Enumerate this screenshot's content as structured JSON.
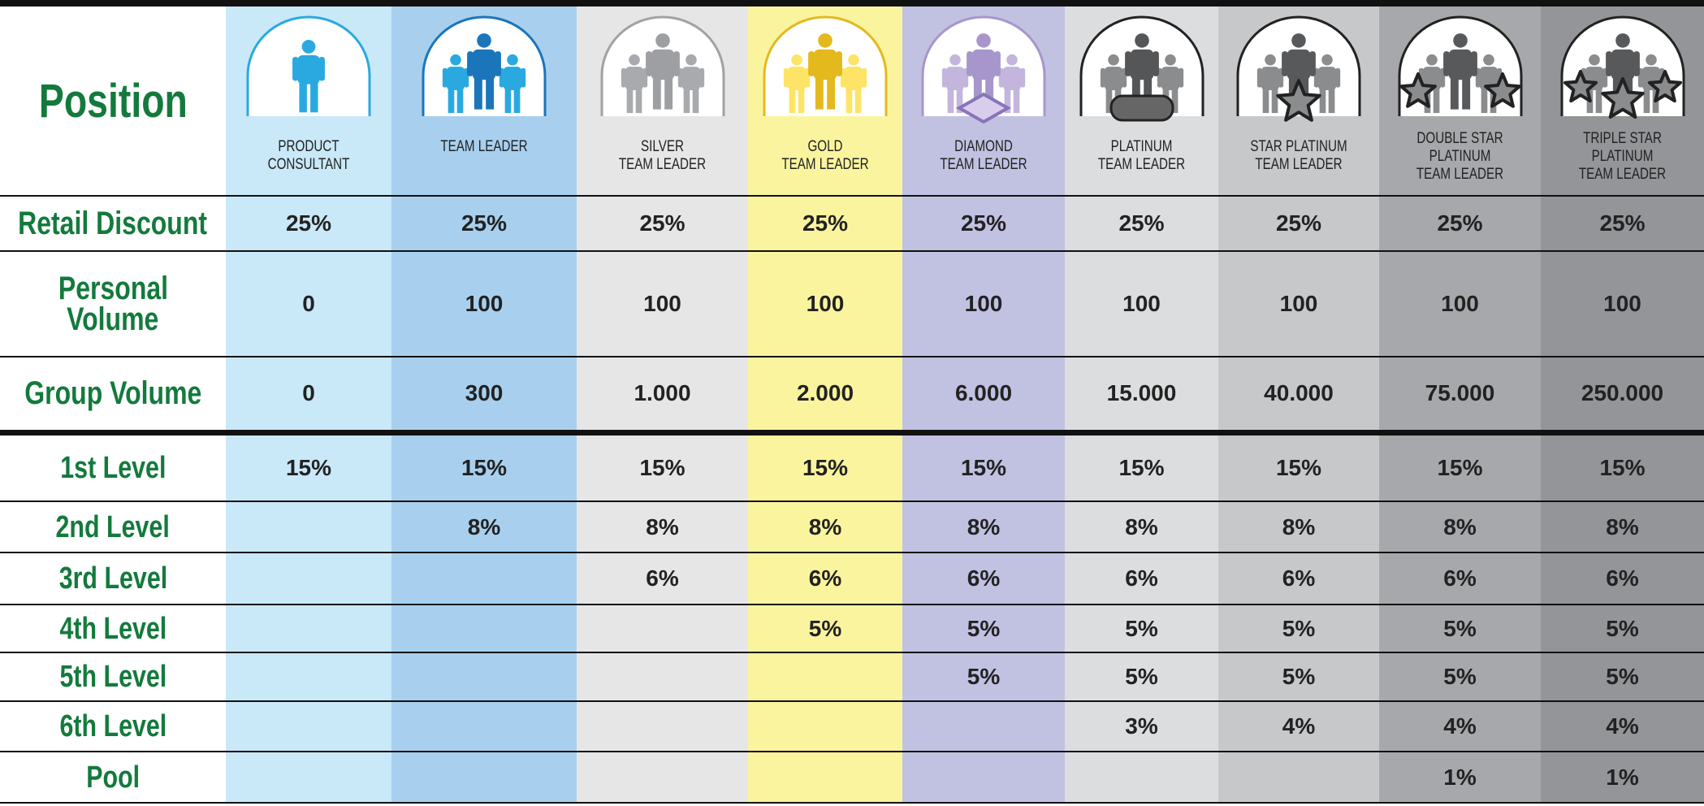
{
  "header": {
    "title": "Position"
  },
  "columns": [
    [
      "PRODUCT",
      "CONSULTANT"
    ],
    [
      "TEAM LEADER"
    ],
    [
      "SILVER",
      "TEAM LEADER"
    ],
    [
      "GOLD",
      "TEAM LEADER"
    ],
    [
      "DIAMOND",
      "TEAM LEADER"
    ],
    [
      "PLATINUM",
      "TEAM LEADER"
    ],
    [
      "STAR PLATINUM",
      "TEAM LEADER"
    ],
    [
      "DOUBLE STAR",
      "PLATINUM",
      "TEAM LEADER"
    ],
    [
      "TRIPLE STAR",
      "PLATINUM",
      "TEAM LEADER"
    ]
  ],
  "rows": [
    {
      "label": [
        "Retail Discount"
      ],
      "values": [
        "25%",
        "25%",
        "25%",
        "25%",
        "25%",
        "25%",
        "25%",
        "25%",
        "25%"
      ]
    },
    {
      "label": [
        "Personal",
        "Volume"
      ],
      "values": [
        "0",
        "100",
        "100",
        "100",
        "100",
        "100",
        "100",
        "100",
        "100"
      ]
    },
    {
      "label": [
        "Group Volume"
      ],
      "values": [
        "0",
        "300",
        "1.000",
        "2.000",
        "6.000",
        "15.000",
        "40.000",
        "75.000",
        "250.000"
      ]
    },
    {
      "label": [
        "1st Level"
      ],
      "values": [
        "15%",
        "15%",
        "15%",
        "15%",
        "15%",
        "15%",
        "15%",
        "15%",
        "15%"
      ]
    },
    {
      "label": [
        "2nd Level"
      ],
      "values": [
        null,
        "8%",
        "8%",
        "8%",
        "8%",
        "8%",
        "8%",
        "8%",
        "8%"
      ]
    },
    {
      "label": [
        "3rd Level"
      ],
      "values": [
        null,
        null,
        "6%",
        "6%",
        "6%",
        "6%",
        "6%",
        "6%",
        "6%"
      ]
    },
    {
      "label": [
        "4th Level"
      ],
      "values": [
        null,
        null,
        null,
        "5%",
        "5%",
        "5%",
        "5%",
        "5%",
        "5%"
      ]
    },
    {
      "label": [
        "5th Level"
      ],
      "values": [
        null,
        null,
        null,
        null,
        "5%",
        "5%",
        "5%",
        "5%",
        "5%"
      ]
    },
    {
      "label": [
        "6th Level"
      ],
      "values": [
        null,
        null,
        null,
        null,
        null,
        "3%",
        "4%",
        "4%",
        "4%"
      ]
    },
    {
      "label": [
        "Pool"
      ],
      "values": [
        null,
        null,
        null,
        null,
        null,
        null,
        null,
        "1%",
        "1%"
      ]
    }
  ]
}
